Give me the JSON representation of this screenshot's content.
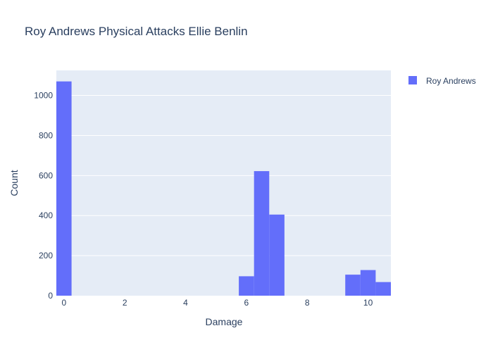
{
  "chart_data": {
    "type": "bar",
    "title": "Roy Andrews Physical Attacks Ellie Benlin",
    "xlabel": "Damage",
    "ylabel": "Count",
    "xlim": [
      -0.25,
      10.75
    ],
    "ylim": [
      0,
      1125
    ],
    "bin_width": 0.5,
    "x_ticks": [
      0,
      2,
      4,
      6,
      8,
      10
    ],
    "y_ticks": [
      0,
      200,
      400,
      600,
      800,
      1000
    ],
    "grid": true,
    "legend_position": "top-right",
    "series": [
      {
        "name": "Roy Andrews",
        "color": "#636efa",
        "bins": [
          {
            "x0": -0.25,
            "x1": 0.25,
            "count": 1070
          },
          {
            "x0": 5.75,
            "x1": 6.25,
            "count": 97
          },
          {
            "x0": 6.25,
            "x1": 6.75,
            "count": 622
          },
          {
            "x0": 6.75,
            "x1": 7.25,
            "count": 405
          },
          {
            "x0": 9.25,
            "x1": 9.75,
            "count": 105
          },
          {
            "x0": 9.75,
            "x1": 10.25,
            "count": 128
          },
          {
            "x0": 10.25,
            "x1": 10.75,
            "count": 68
          }
        ]
      }
    ]
  }
}
